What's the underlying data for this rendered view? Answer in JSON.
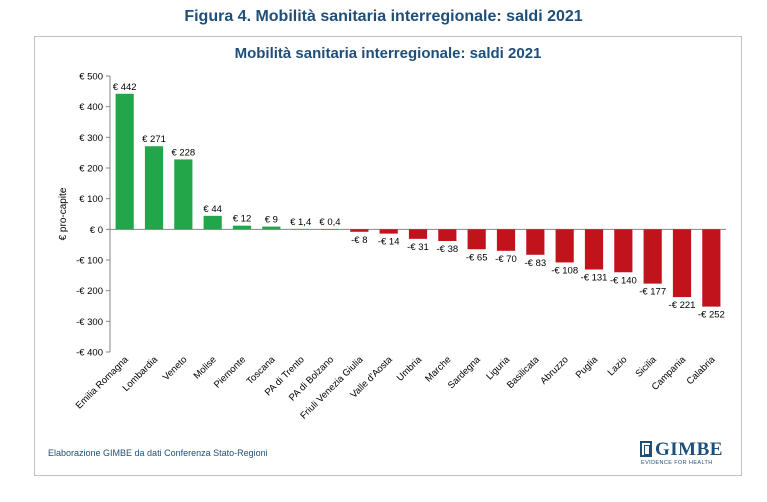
{
  "figure_title": "Figura 4. Mobilità sanitaria interregionale: saldi 2021",
  "source_note": "Elaborazione GIMBE da dati Conferenza Stato-Regioni",
  "logo": {
    "text": "GIMBE",
    "tagline": "EVIDENCE FOR HEALTH"
  },
  "colors": {
    "positive": "#23a64a",
    "negative": "#c0141c",
    "title": "#1f4e79"
  },
  "chart_data": {
    "type": "bar",
    "title": "Mobilità sanitaria interregionale: saldi 2021",
    "xlabel": "",
    "ylabel": "€ pro-capite",
    "ylim": [
      -400,
      500
    ],
    "yticks": [
      500,
      400,
      300,
      200,
      100,
      0,
      -100,
      -200,
      -300,
      -400
    ],
    "ytick_labels": [
      "€ 500",
      "€ 400",
      "€ 300",
      "€ 200",
      "€ 100",
      "€ 0",
      "-€ 100",
      "-€ 200",
      "-€ 300",
      "-€ 400"
    ],
    "grid": false,
    "categories": [
      "Emilia Romagna",
      "Lombardia",
      "Veneto",
      "Molise",
      "Piemonte",
      "Toscana",
      "PA di Trento",
      "PA di Bolzano",
      "Friuli Venezia Giulia",
      "Valle d'Aosta",
      "Umbria",
      "Marche",
      "Sardegna",
      "Liguria",
      "Basilicata",
      "Abruzzo",
      "Puglia",
      "Lazio",
      "Sicilia",
      "Campania",
      "Calabria"
    ],
    "values": [
      442,
      271,
      228,
      44,
      12,
      9,
      1.4,
      0.4,
      -8,
      -14,
      -31,
      -38,
      -65,
      -70,
      -83,
      -108,
      -131,
      -140,
      -177,
      -221,
      -252
    ],
    "value_labels": [
      "€ 442",
      "€ 271",
      "€ 228",
      "€ 44",
      "€ 12",
      "€ 9",
      "€ 1,4",
      "€ 0,4",
      "-€ 8",
      "-€ 14",
      "-€ 31",
      "-€ 38",
      "-€ 65",
      "-€ 70",
      "-€ 83",
      "-€ 108",
      "-€ 131",
      "-€ 140",
      "-€ 177",
      "-€ 221",
      "-€ 252"
    ]
  }
}
